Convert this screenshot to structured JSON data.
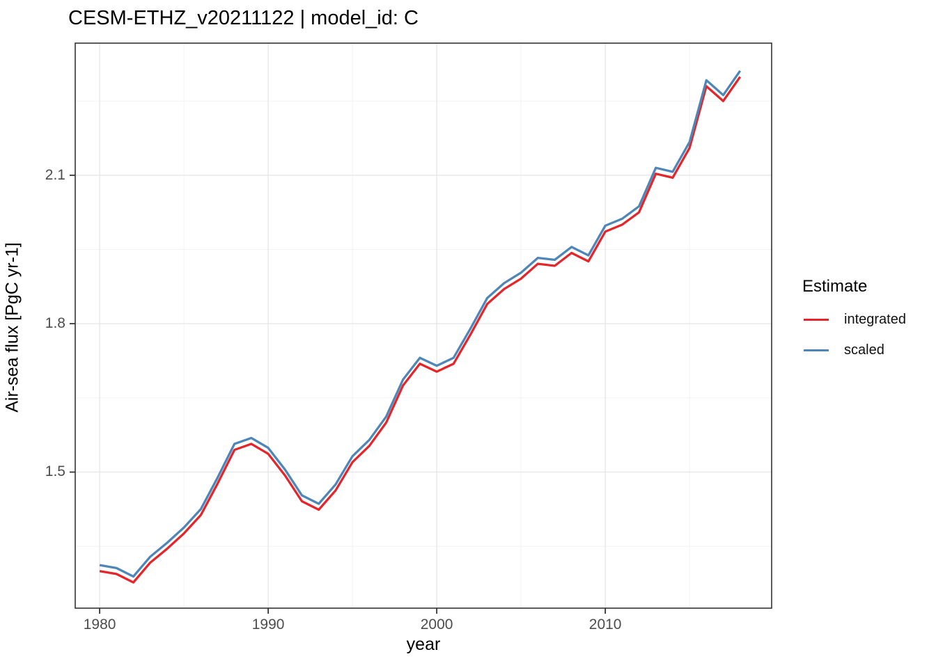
{
  "title": "CESM-ETHZ_v20211122 | model_id: C",
  "legend": {
    "title": "Estimate",
    "position": "right"
  },
  "colors": {
    "integrated": "#e4262b",
    "scaled": "#4e87b7",
    "panel_border": "#333333",
    "grid_major": "#e7e7e7",
    "grid_minor": "#f1f1f1",
    "tick_text": "#4d4d4d"
  },
  "chart_data": {
    "type": "line",
    "title": "CESM-ETHZ_v20211122 | model_id: C",
    "xlabel": "year",
    "ylabel": "Air-sea flux [PgC yr-1]",
    "legend_title": "Estimate",
    "legend_position": "right",
    "grid": "on",
    "xlim": [
      1978.55,
      2019.87
    ],
    "ylim": [
      1.225,
      2.367
    ],
    "x_ticks": [
      {
        "v": 1980,
        "label": "1980"
      },
      {
        "v": 1990,
        "label": "1990"
      },
      {
        "v": 2000,
        "label": "2000"
      },
      {
        "v": 2010,
        "label": "2010"
      }
    ],
    "x_minor_ticks": [
      1985,
      1995,
      2005,
      2015
    ],
    "y_ticks": [
      {
        "v": 1.5,
        "label": "1.5"
      },
      {
        "v": 1.8,
        "label": "1.8"
      },
      {
        "v": 2.1,
        "label": "2.1"
      }
    ],
    "y_minor_ticks": [
      1.35,
      1.65,
      1.95,
      2.25
    ],
    "x": [
      1980,
      1981,
      1982,
      1983,
      1984,
      1985,
      1986,
      1987,
      1988,
      1989,
      1990,
      1991,
      1992,
      1993,
      1994,
      1995,
      1996,
      1997,
      1998,
      1999,
      2000,
      2001,
      2002,
      2003,
      2004,
      2005,
      2006,
      2007,
      2008,
      2009,
      2010,
      2011,
      2012,
      2013,
      2014,
      2015,
      2016,
      2017,
      2018
    ],
    "series": [
      {
        "name": "integrated",
        "color": "#e4262b",
        "values": [
          1.3,
          1.294,
          1.277,
          1.317,
          1.345,
          1.376,
          1.413,
          1.477,
          1.545,
          1.557,
          1.537,
          1.493,
          1.441,
          1.424,
          1.463,
          1.52,
          1.553,
          1.6,
          1.675,
          1.719,
          1.703,
          1.719,
          1.778,
          1.84,
          1.87,
          1.891,
          1.921,
          1.917,
          1.943,
          1.926,
          1.986,
          2.0,
          2.025,
          2.103,
          2.095,
          2.155,
          2.28,
          2.25,
          2.299
        ]
      },
      {
        "name": "scaled",
        "color": "#4e87b7",
        "values": [
          1.312,
          1.306,
          1.289,
          1.329,
          1.357,
          1.388,
          1.425,
          1.489,
          1.557,
          1.569,
          1.549,
          1.505,
          1.453,
          1.436,
          1.475,
          1.532,
          1.565,
          1.612,
          1.687,
          1.731,
          1.715,
          1.731,
          1.79,
          1.852,
          1.882,
          1.903,
          1.933,
          1.929,
          1.955,
          1.938,
          1.998,
          2.012,
          2.037,
          2.115,
          2.107,
          2.167,
          2.292,
          2.262,
          2.311
        ]
      }
    ]
  }
}
